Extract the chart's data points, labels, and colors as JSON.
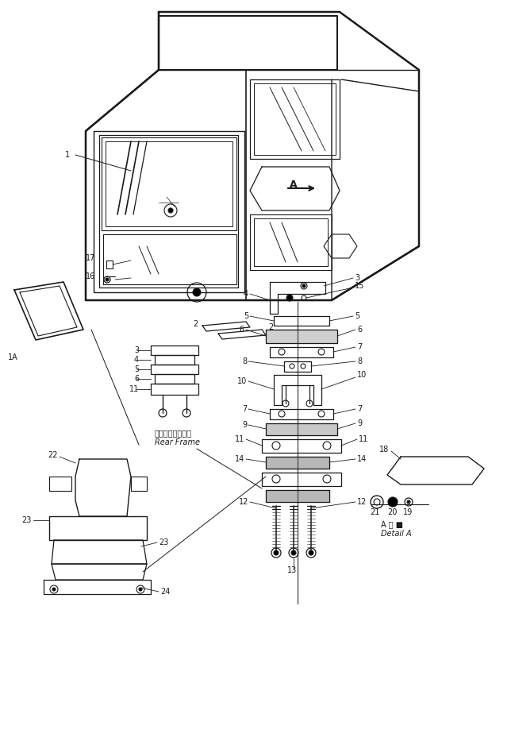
{
  "bg_color": "#ffffff",
  "lc": "#1a1a1a",
  "fig_width": 6.49,
  "fig_height": 9.38,
  "dpi": 100,
  "rear_frame_jp": "リャーフレーム・",
  "rear_frame_en": "Rear Frame",
  "detail_a_jp": "A 詳 ■",
  "detail_a_en": "Detail A"
}
